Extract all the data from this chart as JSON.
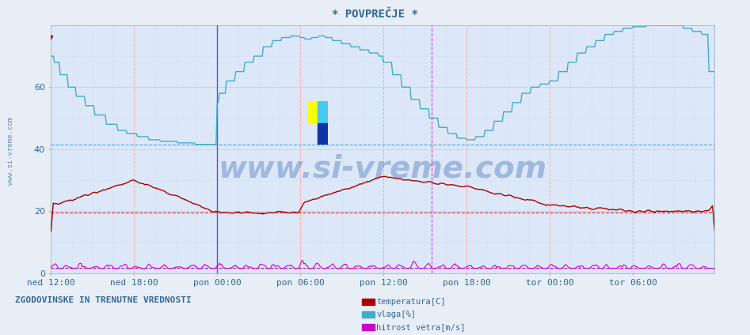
{
  "title": "* POVPREČJE *",
  "xlabel_ticks": [
    "ned 12:00",
    "ned 18:00",
    "pon 00:00",
    "pon 06:00",
    "pon 12:00",
    "pon 18:00",
    "tor 00:00",
    "tor 06:00"
  ],
  "ylabel_ticks": [
    0,
    20,
    40,
    60
  ],
  "ylim": [
    0,
    80
  ],
  "xlim": [
    0,
    576
  ],
  "bg_color": "#e8eef5",
  "plot_bg_color": "#dce8f8",
  "temp_color": "#aa0000",
  "vlaga_color": "#44aacc",
  "wind_color": "#cc00cc",
  "watermark_color": "#2255aa",
  "legend_label1": "temperatura[C]",
  "legend_label2": "vlaga[%]",
  "legend_label3": "hitrost vetra[m/s]",
  "bottom_label": "ZGODOVINSKE IN TRENUTNE VREDNOSTI",
  "ylabel_label": "www.si-vreme.com",
  "n_points": 576,
  "tick_positions_x": [
    0,
    72,
    144,
    216,
    288,
    360,
    432,
    504
  ],
  "hline_red_y": 19.5,
  "hline_cyan_y": 41.5,
  "hline_magenta_y": 1.8,
  "vline_blue_x": 144,
  "vline_magenta_x": 330,
  "vline_magenta2_x": 575
}
